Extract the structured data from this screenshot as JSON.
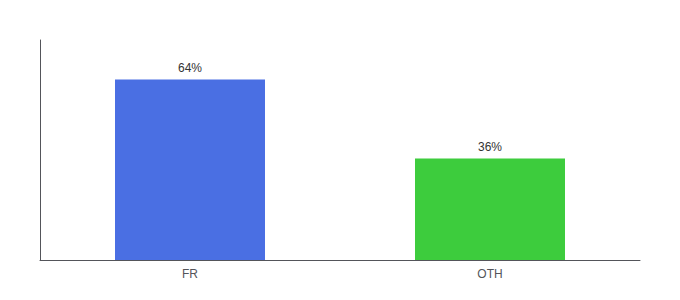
{
  "chart_data": {
    "type": "bar",
    "categories": [
      "FR",
      "OTH"
    ],
    "values": [
      64,
      36
    ],
    "value_labels": [
      "64%",
      "36%"
    ],
    "colors": [
      "#4a6fe3",
      "#3dcc3d"
    ],
    "ylim": [
      0,
      78
    ],
    "data_labels": true,
    "grid": false,
    "tick_labels": "x"
  }
}
